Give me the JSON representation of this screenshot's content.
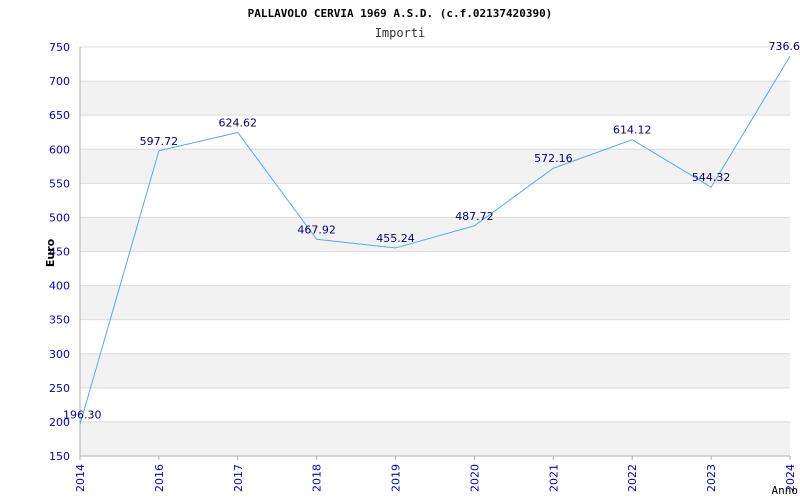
{
  "chart_data": {
    "type": "line",
    "title": "PALLAVOLO CERVIA 1969 A.S.D. (c.f.02137420390)",
    "subtitle": "Importi",
    "xlabel": "Anno",
    "ylabel": "Euro",
    "categories": [
      "2014",
      "2016",
      "2017",
      "2018",
      "2019",
      "2020",
      "2021",
      "2022",
      "2023",
      "2024"
    ],
    "values": [
      196.3,
      597.72,
      624.62,
      467.92,
      455.24,
      487.72,
      572.16,
      614.12,
      544.32,
      736.6
    ],
    "value_labels": [
      "196.30",
      "597.72",
      "624.62",
      "467.92",
      "455.24",
      "487.72",
      "572.16",
      "614.12",
      "544.32",
      "736.6"
    ],
    "ylim": [
      150,
      750
    ],
    "yticks": [
      150,
      200,
      250,
      300,
      350,
      400,
      450,
      500,
      550,
      600,
      650,
      700,
      750
    ],
    "grid": true,
    "colors": {
      "line": "#5aa9e6",
      "band": "#f2f2f2",
      "grid": "#dcdcdc",
      "tick_text": "#0000cc",
      "label_text": "#000080",
      "title_text": "#000000"
    }
  }
}
